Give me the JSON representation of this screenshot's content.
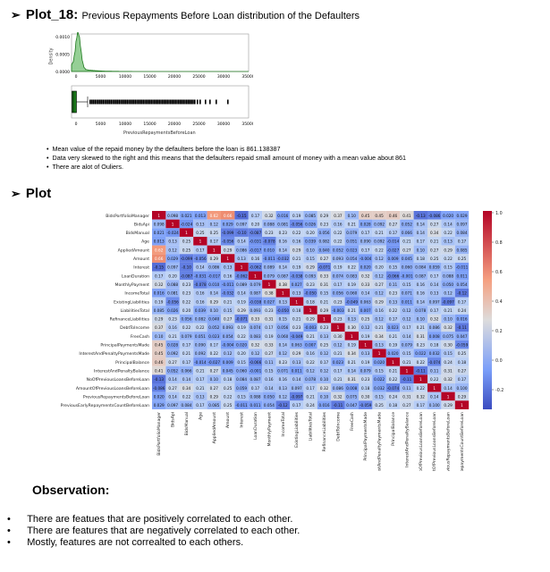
{
  "sections": {
    "s1_title": "Plot_18:",
    "s1_subtitle": "Previous Repayments Before Loan distribution of the Defaulters",
    "s2_title": "Plot",
    "obs_title": "Observation:"
  },
  "density_plot": {
    "ylabel": "Density",
    "y_ticks": [
      "0.0010",
      "0.0005",
      "0.0000"
    ],
    "x_ticks": [
      "0",
      "5000",
      "10000",
      "15000",
      "20000",
      "25000",
      "30000",
      "35000"
    ],
    "color": "#2ca02c"
  },
  "box_plot": {
    "x_ticks": [
      "0",
      "5000",
      "10000",
      "15000",
      "20000",
      "25000",
      "30000",
      "35000"
    ],
    "xlabel": "PreviousRepaymentsBeforeLoan",
    "color": "#1a7a1a"
  },
  "bullets1": [
    "Mean value of the repaid money by the defaulters before the loan is 861.138387",
    "Data very skewed to the right and this means that the defaulters repaid small amount of money with a mean value about 861",
    "There are alot of Ouliers."
  ],
  "heatmap": {
    "labels": [
      "BidsPortfolioManager",
      "BidsApi",
      "BidsManual",
      "Age",
      "AppliedAmount",
      "Amount",
      "Interest",
      "LoanDuration",
      "MonthlyPayment",
      "IncomeTotal",
      "ExistingLiabilities",
      "LiabilitiesTotal",
      "RefinanceLiabilities",
      "DebtToIncome",
      "FreeCash",
      "PrincipalPaymentsMade",
      "InterestAndPenaltyPaymentsMade",
      "PrincipalBalance",
      "InterestAndPenaltyBalance",
      "NoOfPreviousLoansBeforeLoan",
      "AmountOfPreviousLoansBeforeLoan",
      "PreviousRepaymentsBeforeLoan",
      "PreviousEarlyRepaymentsCountBeforeLoan"
    ],
    "colorbar_ticks": [
      "1.0",
      "0.8",
      "0.6",
      "0.4",
      "0.2",
      "0.0",
      "-0.2"
    ],
    "first_row_values": [
      "1",
      "0.098",
      "0.021",
      "0.013",
      "0.62",
      "0.66",
      "-0.15",
      "0.17",
      "0.32",
      "0.016",
      "0.19",
      "0.085",
      "0.29",
      "0.37",
      "0.1",
      "0.45",
      "0.45",
      "0.46",
      "0.41",
      "-0.13",
      "-0.086",
      "0.02",
      "0.029"
    ]
  },
  "bullets2": [
    "There are featues that are positively correlated to each other.",
    "There are features that are negatively correlated to each other.",
    "Mostly, features are not correalted to each others."
  ]
}
